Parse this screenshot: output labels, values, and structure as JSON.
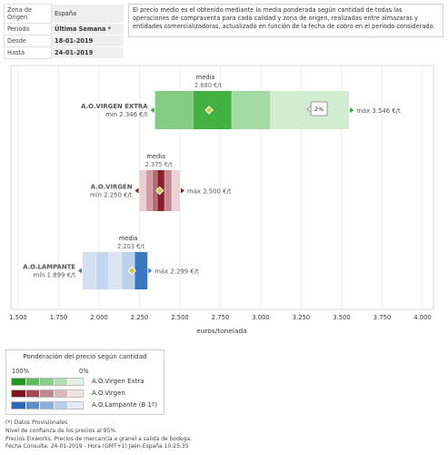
{
  "filters": [
    {
      "label": "Zona de Origen",
      "value": "España",
      "bold": false
    },
    {
      "label": "Periodo",
      "value": "Última Semana *",
      "bold": true
    },
    {
      "label": "Desde",
      "value": "18-01-2019",
      "bold": true
    },
    {
      "label": "Hasta",
      "value": "24-01-2019",
      "bold": true
    }
  ],
  "info_text": "El precio medio es el obtenido mediante la media ponderada según cantidad de todas las operaciones de compraventa para cada calidad y zona de origen, realizadas entre almazaras y entidades comercializadoras, actualizado en función de la fecha de cobro en el periodo considerado.",
  "chart_data": {
    "type": "range-bar",
    "xlabel": "euros/tonelada",
    "xlim": [
      1.5,
      4.0
    ],
    "x_ticks": [
      "1.500",
      "1.750",
      "2.000",
      "2.250",
      "2.500",
      "2.750",
      "3.000",
      "3.250",
      "3.500",
      "3.750",
      "4.000"
    ],
    "series": [
      {
        "name": "A.O.VIRGEN EXTRA",
        "min": 2.346,
        "min_label": "mín 2.346 €/t",
        "media": 2.68,
        "media_caption": "media",
        "media_value": "2.680 €/t",
        "max": 3.546,
        "max_label": "máx 3.546 €/t",
        "segments": [
          [
            2.346,
            2.58,
            "#82cd82"
          ],
          [
            2.58,
            2.82,
            "#42b142"
          ],
          [
            2.82,
            3.06,
            "#a4daa4"
          ],
          [
            3.06,
            3.546,
            "#d2edd2"
          ]
        ],
        "tooltip": "2%",
        "tooltip_at": 3.36,
        "marker": "#d4c93c"
      },
      {
        "name": "A.O.VIRGEN",
        "min": 2.25,
        "min_label": "mín 2.250 €/t",
        "media": 2.375,
        "media_caption": "media",
        "media_value": "2.375 €/t",
        "max": 2.5,
        "max_label": "máx 2.500 €/t",
        "segments": [
          [
            2.25,
            2.29,
            "#e9cfd2"
          ],
          [
            2.29,
            2.33,
            "#cf9aa1"
          ],
          [
            2.33,
            2.36,
            "#b26872"
          ],
          [
            2.36,
            2.405,
            "#8c1d2a"
          ],
          [
            2.405,
            2.45,
            "#c58a92"
          ],
          [
            2.45,
            2.5,
            "#ead3d6"
          ]
        ],
        "marker": "#d4c93c"
      },
      {
        "name": "A.O.LAMPANTE",
        "min": 1.899,
        "min_label": "mín 1.899 €/t",
        "media": 2.203,
        "media_caption": "media",
        "media_value": "2.203 €/t",
        "max": 2.299,
        "max_label": "máx 2.299 €/t",
        "segments": [
          [
            1.899,
            1.98,
            "#d2e0f2"
          ],
          [
            1.98,
            2.06,
            "#c4d7ee"
          ],
          [
            2.06,
            2.14,
            "#d9e5f4"
          ],
          [
            2.14,
            2.22,
            "#bcd1ec"
          ],
          [
            2.22,
            2.299,
            "#3c78c2"
          ]
        ],
        "marker": "#d4c93c"
      }
    ]
  },
  "legend": {
    "title": "Ponderación del precio según cantidad",
    "pct_high": "100%",
    "pct_low": "0%",
    "rows": [
      {
        "label": "A.O.Virgen Extra",
        "colors": [
          "#1f9a1f",
          "#5abd5a",
          "#86cf86",
          "#b3e0b3",
          "#dff1df"
        ]
      },
      {
        "label": "A.O.Virgen",
        "colors": [
          "#7d1520",
          "#a54a55",
          "#c48890",
          "#dcb8bd",
          "#f0e1e3"
        ]
      },
      {
        "label": "A.O.Lampante (B 1º)",
        "colors": [
          "#2d6bb8",
          "#5b8dcb",
          "#8aafdc",
          "#b7cfeb",
          "#e1ebf7"
        ]
      }
    ]
  },
  "footer": [
    "(*) Datos Provisionales",
    "Nivel de confianza de los precios al 95%.",
    "Precios Eixworks. Precios de mercancía a granel a salida de bodega.",
    "Fecha Consulta: 24-01-2019 - Hora (GMT+1) Jaén-España 10:25:35"
  ]
}
